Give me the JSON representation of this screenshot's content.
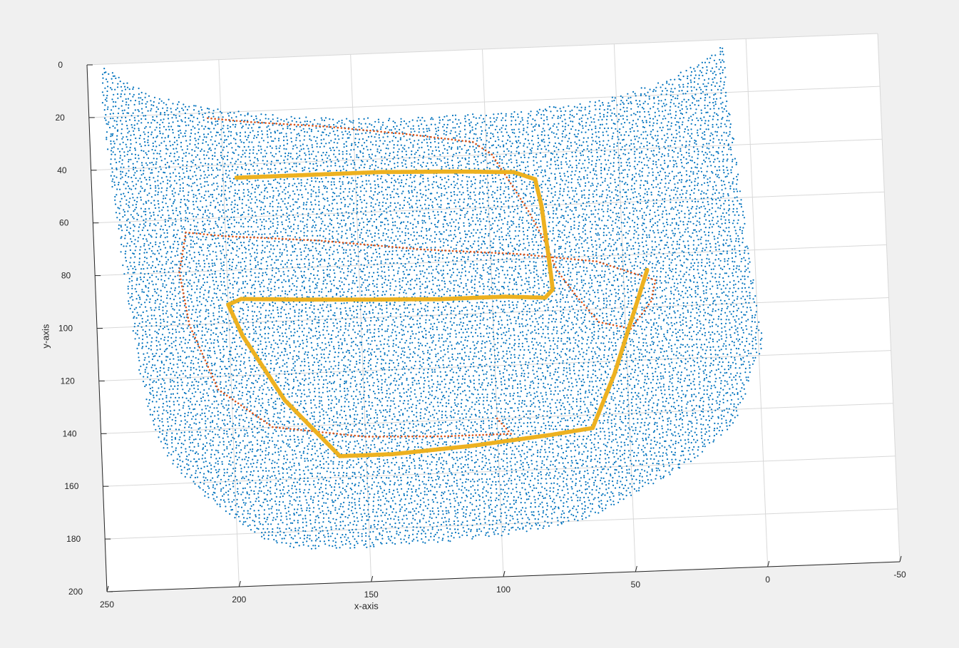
{
  "chart_data": {
    "type": "scatter",
    "title": "",
    "xlabel": "x-axis",
    "ylabel": "y-axis",
    "xlim": [
      250,
      -50
    ],
    "ylim": [
      0,
      200
    ],
    "x_ticks": [
      250,
      200,
      150,
      100,
      50,
      0,
      -50
    ],
    "y_ticks": [
      0,
      20,
      40,
      60,
      80,
      100,
      120,
      140,
      160,
      180,
      200
    ],
    "x_reversed": true,
    "y_reversed": true,
    "grid": true,
    "legend": "none",
    "colors": {
      "point_cloud": "#0072bd",
      "path_thin": "#d95319",
      "path_thick": "#edb120",
      "background": "#ffffff",
      "figure": "#f0f0f0"
    },
    "series": [
      {
        "style": "scatter",
        "color": "#0072bd",
        "description": "dense point cloud",
        "boundary": [
          [
            245,
            0
          ],
          [
            238,
            5
          ],
          [
            225,
            13
          ],
          [
            200,
            19
          ],
          [
            170,
            23
          ],
          [
            130,
            25
          ],
          [
            90,
            24
          ],
          [
            55,
            21
          ],
          [
            30,
            14
          ],
          [
            12,
            5
          ],
          [
            8,
            1
          ],
          [
            8,
            20
          ],
          [
            6,
            40
          ],
          [
            4,
            60
          ],
          [
            2,
            80
          ],
          [
            0,
            100
          ],
          [
            -2,
            115
          ],
          [
            4,
            130
          ],
          [
            10,
            145
          ],
          [
            28,
            160
          ],
          [
            48,
            170
          ],
          [
            60,
            176
          ],
          [
            70,
            180
          ],
          [
            95,
            184
          ],
          [
            120,
            186
          ],
          [
            150,
            187
          ],
          [
            175,
            187
          ],
          [
            190,
            183
          ],
          [
            200,
            175
          ],
          [
            212,
            165
          ],
          [
            222,
            155
          ],
          [
            228,
            145
          ],
          [
            232,
            130
          ],
          [
            235,
            115
          ],
          [
            237,
            100
          ],
          [
            239,
            80
          ],
          [
            241,
            60
          ],
          [
            243,
            40
          ],
          [
            244,
            25
          ],
          [
            245,
            10
          ]
        ]
      },
      {
        "style": "line",
        "color": "#d95319",
        "description": "thin dotted path",
        "x": [
          205,
          190,
          160,
          130,
          105,
          98,
          92,
          85,
          80,
          75,
          68,
          60,
          48,
          40,
          38,
          60,
          90,
          125,
          165,
          200,
          215,
          218,
          215,
          205,
          185,
          150,
          120,
          95,
          100
        ],
        "y": [
          22,
          24,
          27,
          31,
          35,
          40,
          50,
          62,
          72,
          85,
          95,
          105,
          108,
          98,
          90,
          82,
          78,
          75,
          70,
          67,
          65,
          80,
          100,
          125,
          140,
          145,
          146,
          146,
          140
        ]
      },
      {
        "style": "line",
        "color": "#edb120",
        "description": "thick path",
        "x": [
          195,
          185,
          165,
          140,
          110,
          90,
          82,
          80,
          79,
          78,
          77,
          80,
          95,
          120,
          150,
          175,
          195,
          200,
          195,
          180,
          160,
          140,
          110,
          80,
          64,
          55,
          46,
          41
        ],
        "y": [
          45,
          45,
          45,
          45,
          46,
          47,
          50,
          60,
          70,
          80,
          92,
          95,
          94,
          94,
          93,
          92,
          91,
          93,
          105,
          130,
          152,
          152,
          150,
          147,
          145,
          125,
          100,
          86
        ]
      }
    ]
  }
}
